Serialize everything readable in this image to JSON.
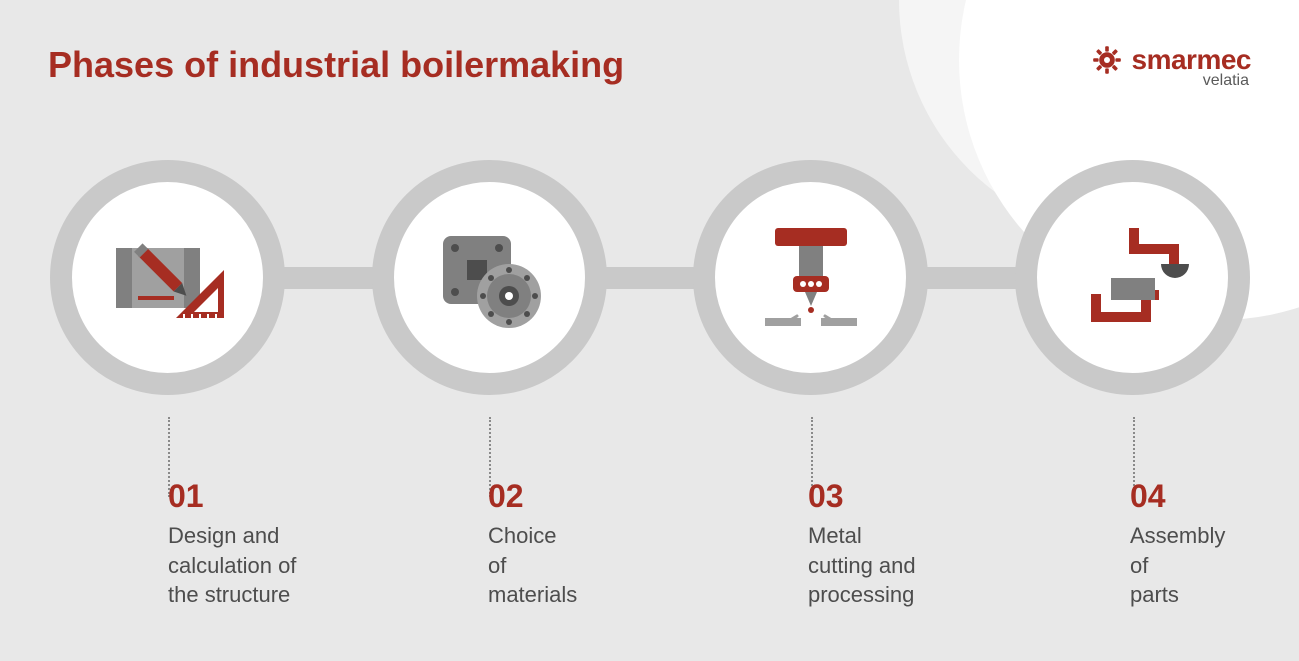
{
  "title": "Phases of industrial boilermaking",
  "brand": {
    "name": "smarmec",
    "sub": "velatia"
  },
  "colors": {
    "accent": "#a62d22",
    "ring": "#c9c9c9",
    "gray": "#808080",
    "grayLight": "#a0a0a0",
    "body": "#4d4d4d",
    "drop": "#8a8a8a"
  },
  "layout": {
    "labelLefts": [
      118,
      438,
      758,
      1080
    ]
  },
  "phases": [
    {
      "num": "01",
      "desc": "Design and\ncalculation of\nthe structure"
    },
    {
      "num": "02",
      "desc": "Choice\nof\nmaterials"
    },
    {
      "num": "03",
      "desc": "Metal\ncutting and\nprocessing"
    },
    {
      "num": "04",
      "desc": "Assembly\nof\nparts"
    }
  ]
}
